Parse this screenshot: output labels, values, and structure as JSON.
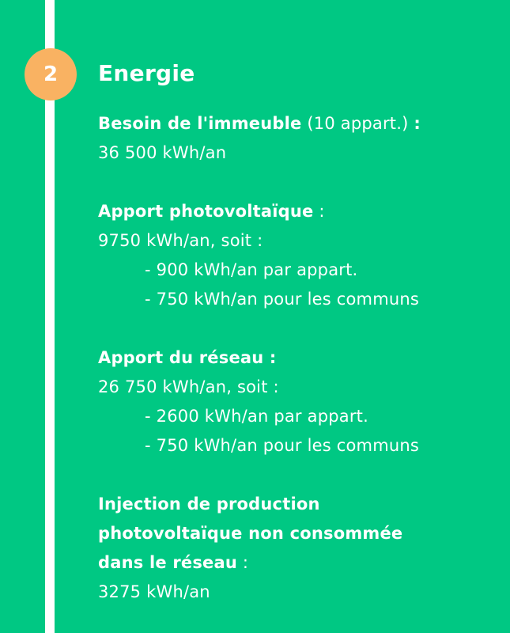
{
  "step": {
    "number": "2",
    "title": "Energie"
  },
  "colors": {
    "background": "#00C883",
    "badge": "#F9B262",
    "text": "#FFFFFF"
  },
  "sections": [
    {
      "heading": "Besoin de l'immeuble",
      "heading_suffix": " (10 appart.) ",
      "heading_colon": ":",
      "value": "36 500 kWh/an",
      "items": []
    },
    {
      "heading": "Apport photovoltaïque",
      "heading_suffix": " :",
      "heading_colon": "",
      "value": "9750 kWh/an, soit :",
      "items": [
        "- 900 kWh/an par appart.",
        "- 750 kWh/an pour les communs"
      ]
    },
    {
      "heading": "Apport du réseau :",
      "heading_suffix": "",
      "heading_colon": "",
      "value": "26 750 kWh/an, soit :",
      "items": [
        "- 2600 kWh/an par appart.",
        "- 750 kWh/an pour les communs"
      ]
    },
    {
      "heading_lines": [
        "Injection de production",
        "photovoltaïque non consommée",
        "dans le réseau"
      ],
      "heading_suffix": " :",
      "value": "3275 kWh/an"
    }
  ]
}
